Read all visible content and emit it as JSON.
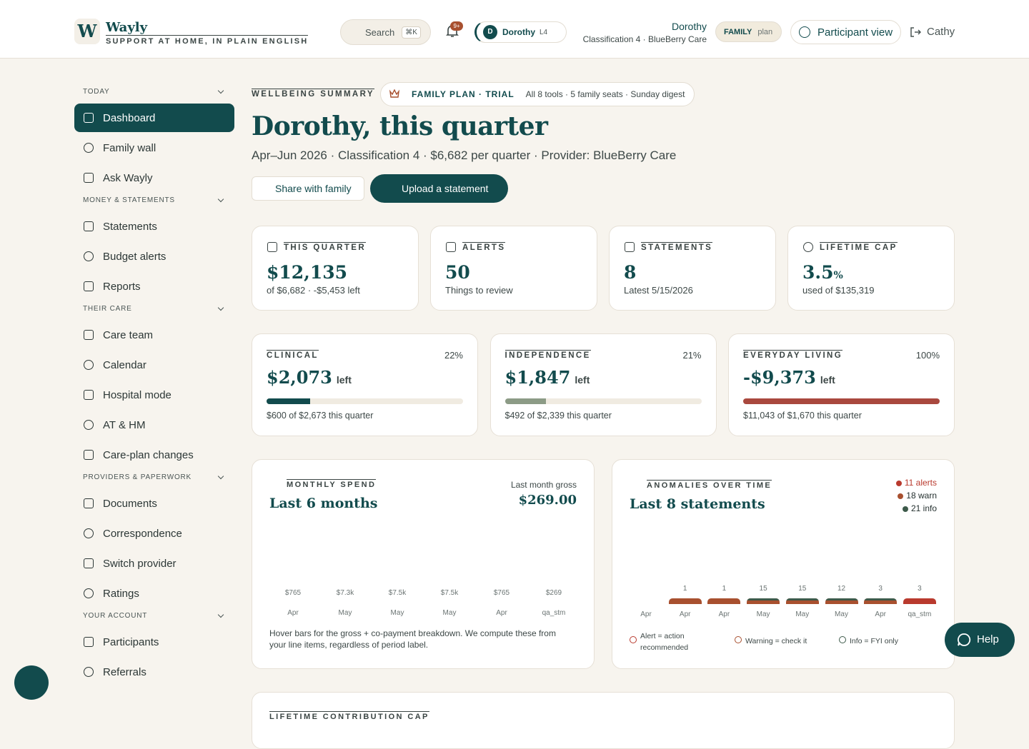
{
  "brand": {
    "logo": "W",
    "name": "Wayly",
    "tagline": "SUPPORT AT HOME, IN PLAIN ENGLISH"
  },
  "topbar": {
    "search": "Search",
    "shortcut": "⌘K",
    "badge": "9+",
    "participant": {
      "initial": "D",
      "name": "Dorothy",
      "level": "L4"
    },
    "person": {
      "name": "Dorothy",
      "detail": "Classification 4 · BlueBerry Care"
    },
    "plan": {
      "tier": "FAMILY",
      "label": "plan"
    },
    "view": "Participant view",
    "user": "Cathy"
  },
  "sidebar": [
    {
      "heading": "TODAY",
      "items": [
        "Dashboard",
        "Family wall",
        "Ask Wayly"
      ]
    },
    {
      "heading": "MONEY & STATEMENTS",
      "items": [
        "Statements",
        "Budget alerts",
        "Reports"
      ]
    },
    {
      "heading": "THEIR CARE",
      "items": [
        "Care team",
        "Calendar",
        "Hospital mode",
        "AT & HM",
        "Care-plan changes"
      ]
    },
    {
      "heading": "PROVIDERS & PAPERWORK",
      "items": [
        "Documents",
        "Correspondence",
        "Switch provider",
        "Ratings"
      ]
    },
    {
      "heading": "YOUR ACCOUNT",
      "items": [
        "Participants",
        "Referrals"
      ]
    }
  ],
  "header": {
    "eyebrow": "WELLBEING SUMMARY",
    "plan": "FAMILY PLAN · TRIAL",
    "plan_detail": "All 8 tools · 5 family seats · Sunday digest",
    "title": "Dorothy, this quarter",
    "subtitle": "Apr–Jun 2026 · Classification 4 · $6,682 per quarter · Provider: BlueBerry Care",
    "share": "Share with family",
    "upload": "Upload a statement"
  },
  "stats": [
    {
      "label": "THIS QUARTER",
      "value": "$12,135",
      "note": "of $6,682 · -$5,453 left"
    },
    {
      "label": "ALERTS",
      "value": "50",
      "note": "Things to review"
    },
    {
      "label": "STATEMENTS",
      "value": "8",
      "note": "Latest 5/15/2026"
    },
    {
      "label": "LIFETIME CAP",
      "value": "3.5",
      "unit": "%",
      "note": "used of $135,319"
    }
  ],
  "budgets": [
    {
      "label": "CLINICAL",
      "pct": "22%",
      "value": "$2,073",
      "suffix": "left",
      "note": "$600 of $2,673 this quarter"
    },
    {
      "label": "INDEPENDENCE",
      "pct": "21%",
      "value": "$1,847",
      "suffix": "left",
      "note": "$492 of $2,339 this quarter"
    },
    {
      "label": "EVERYDAY LIVING",
      "pct": "100%",
      "value": "-$9,373",
      "suffix": "left",
      "note": "$11,043 of $1,670 this quarter"
    }
  ],
  "spend": {
    "eyebrow": "MONTHLY SPEND",
    "title": "Last 6 months",
    "gross_label": "Last month gross",
    "gross": "$269.00",
    "bars": [
      {
        "label": "$765",
        "month": "Apr"
      },
      {
        "label": "$7.3k",
        "month": "May"
      },
      {
        "label": "$7.5k",
        "month": "May"
      },
      {
        "label": "$7.5k",
        "month": "May"
      },
      {
        "label": "$765",
        "month": "Apr"
      },
      {
        "label": "$269",
        "month": "qa_stm"
      }
    ],
    "note": "Hover bars for the gross + co-payment breakdown. We compute these from your line items, regardless of period label."
  },
  "anomalies": {
    "eyebrow": "ANOMALIES OVER TIME",
    "title": "Last 8 statements",
    "legend": [
      "11 alerts",
      "18 warn",
      "21 info"
    ],
    "bars": [
      {
        "count": null,
        "month": "Apr"
      },
      {
        "count": "1",
        "month": "Apr"
      },
      {
        "count": "1",
        "month": "Apr"
      },
      {
        "count": "15",
        "month": "May"
      },
      {
        "count": "15",
        "month": "May"
      },
      {
        "count": "12",
        "month": "May"
      },
      {
        "count": "3",
        "month": "Apr"
      },
      {
        "count": "3",
        "month": "qa_stm"
      }
    ],
    "key": [
      "Alert = action recommended",
      "Warning = check it",
      "Info = FYI only"
    ]
  },
  "lifetime": {
    "eyebrow": "LIFETIME CONTRIBUTION CAP"
  },
  "help": "Help"
}
